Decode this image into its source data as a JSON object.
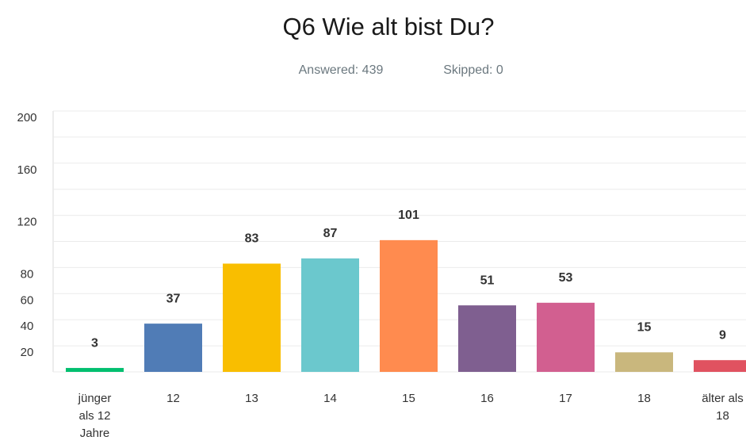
{
  "chart_data": {
    "type": "bar",
    "title": "Q6 Wie alt bist Du?",
    "subtitle": [
      "Answered: 439",
      "Skipped: 0"
    ],
    "categories": [
      "jünger als 12 Jahre",
      "12",
      "13",
      "14",
      "15",
      "16",
      "17",
      "18",
      "älter als 18"
    ],
    "values": [
      3,
      37,
      83,
      87,
      101,
      51,
      53,
      15,
      9
    ],
    "colors": [
      "#00bf6f",
      "#507cb6",
      "#f9be00",
      "#6bc8cd",
      "#ff8b4f",
      "#7f5f90",
      "#d25f90",
      "#c9b77d",
      "#e05260"
    ],
    "ylim": [
      0,
      200
    ],
    "yticks": [
      20,
      40,
      60,
      80,
      120,
      160,
      200
    ],
    "grid_yticks": [
      0,
      20,
      40,
      60,
      80,
      100,
      120,
      140,
      160,
      180,
      200
    ],
    "grid": true
  }
}
